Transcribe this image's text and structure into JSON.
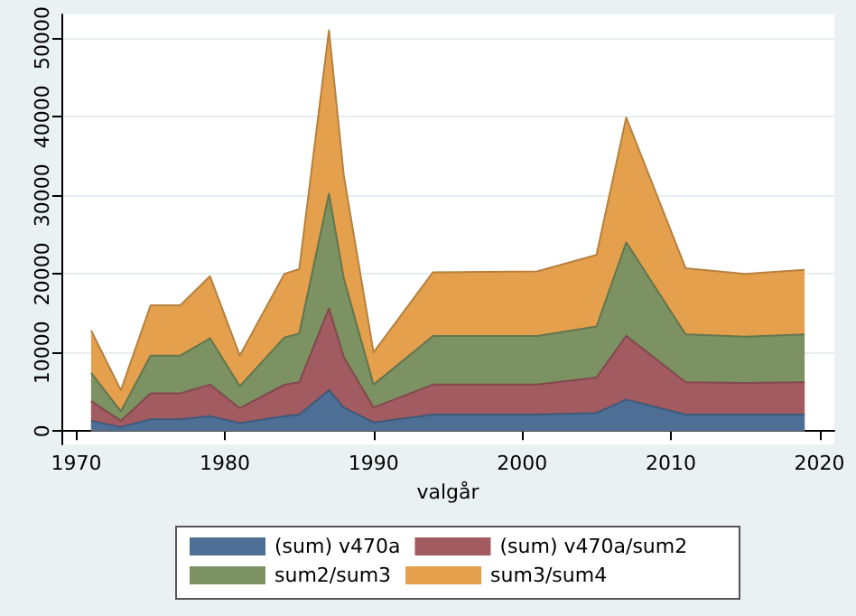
{
  "chart_data": {
    "type": "area",
    "xlabel": "valgår",
    "stacked": true,
    "grid": "y",
    "legend": "bottom",
    "marker": "none",
    "x": [
      1971,
      1973,
      1975,
      1977,
      1979,
      1981,
      1984,
      1985,
      1987,
      1988,
      1990,
      1994,
      2001,
      2005,
      2007,
      2011,
      2015,
      2019
    ],
    "series": [
      {
        "name": "(sum) v470a",
        "color": "#4d6f96",
        "values": [
          1300,
          500,
          1500,
          1500,
          1900,
          1000,
          1900,
          2100,
          5200,
          3000,
          1100,
          2100,
          2100,
          2300,
          4000,
          2100,
          2100,
          2100
        ]
      },
      {
        "name": "(sum) v470a/sum2",
        "color": "#a25b60",
        "values": [
          2500,
          800,
          3300,
          3300,
          4000,
          1900,
          4000,
          4100,
          10400,
          6400,
          1900,
          3800,
          3800,
          4500,
          8100,
          4100,
          4000,
          4100
        ]
      },
      {
        "name": "sum2/sum3",
        "color": "#7c9262",
        "values": [
          3600,
          1200,
          4800,
          4800,
          5900,
          2800,
          6000,
          6200,
          14600,
          10000,
          2900,
          6200,
          6200,
          6500,
          11900,
          6100,
          5900,
          6100
        ]
      },
      {
        "name": "sum3/sum4",
        "color": "#e4a04d",
        "values": [
          5400,
          2700,
          6400,
          6400,
          7900,
          3900,
          8100,
          8200,
          20800,
          13100,
          4100,
          8100,
          8200,
          9100,
          15900,
          8400,
          8000,
          8200
        ]
      }
    ],
    "xlim": [
      1969,
      2021
    ],
    "xticks": [
      1970,
      1980,
      1990,
      2000,
      2010,
      2020
    ],
    "ylim": [
      -1700,
      53000
    ],
    "yticks": [
      0,
      10000,
      20000,
      30000,
      40000,
      50000
    ]
  }
}
